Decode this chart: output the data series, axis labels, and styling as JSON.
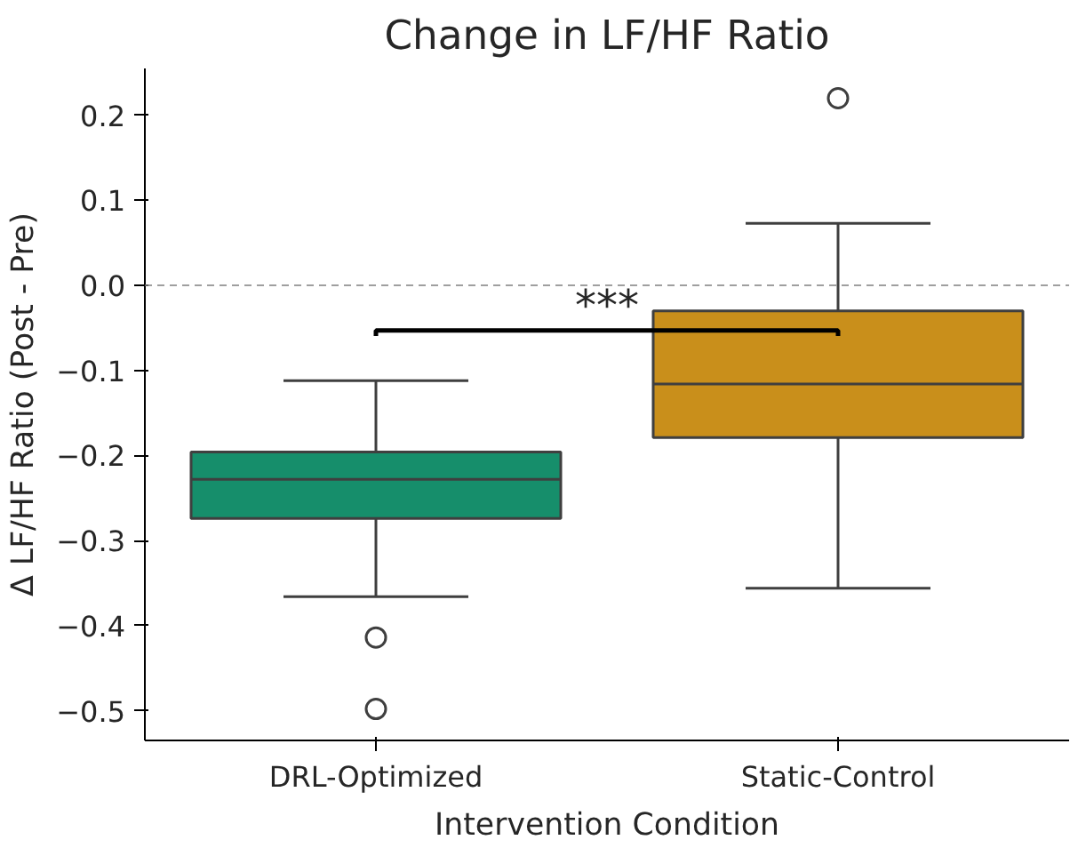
{
  "chart_data": {
    "type": "box",
    "title": "Change in LF/HF Ratio",
    "xlabel": "Intervention Condition",
    "ylabel": "Δ LF/HF Ratio (Post - Pre)",
    "categories": [
      "DRL-Optimized",
      "Static-Control"
    ],
    "colors": [
      "#168e6b",
      "#c98f1b"
    ],
    "boxes": [
      {
        "low": -0.366,
        "q1": -0.274,
        "median": -0.228,
        "q3": -0.196,
        "high": -0.112,
        "outliers": [
          -0.414,
          -0.498
        ]
      },
      {
        "low": -0.356,
        "q1": -0.179,
        "median": -0.116,
        "q3": -0.03,
        "high": 0.073,
        "outliers": [
          0.22
        ]
      }
    ],
    "ylim": [
      -0.535,
      0.255
    ],
    "yticks": [
      {
        "value": -0.5,
        "label": "−0.5"
      },
      {
        "value": -0.4,
        "label": "−0.4"
      },
      {
        "value": -0.3,
        "label": "−0.3"
      },
      {
        "value": -0.2,
        "label": "−0.2"
      },
      {
        "value": -0.1,
        "label": "−0.1"
      },
      {
        "value": 0.0,
        "label": "0.0"
      },
      {
        "value": 0.1,
        "label": "0.1"
      },
      {
        "value": 0.2,
        "label": "0.2"
      }
    ],
    "ref_lines": [
      {
        "axis": "y",
        "value": 0.0,
        "color": "#808080",
        "line_style": "dashed"
      }
    ],
    "annotations": [
      "***"
    ]
  }
}
